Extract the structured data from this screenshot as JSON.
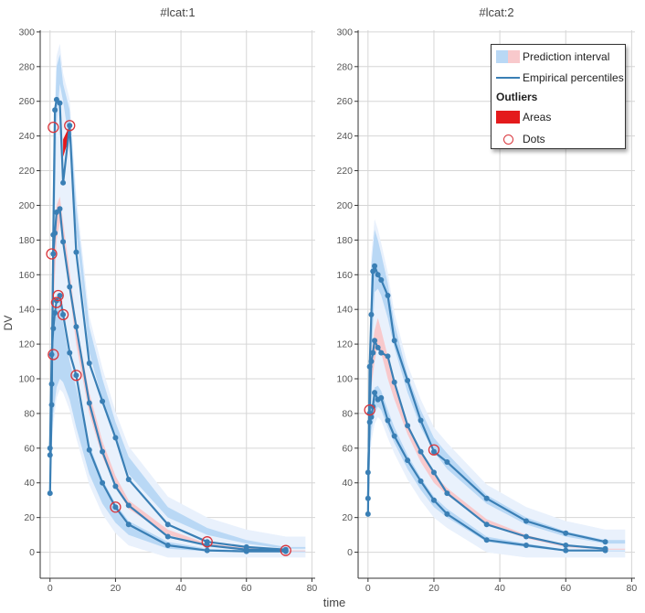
{
  "colors": {
    "band_blue": "#b9d8f5",
    "band_blue_light": "#e9f1fc",
    "band_pink": "#f8c9cc",
    "line": "#3a7fb5",
    "outlier_area": "#e41a1c",
    "outlier_dot": "#d9353b",
    "grid": "#d6d6d6",
    "axis_text": "#555555"
  },
  "chart_data": [
    {
      "type": "line",
      "title": "#lcat:1",
      "xlabel": "time",
      "ylabel": "DV",
      "xlim": [
        -3,
        81
      ],
      "ylim": [
        -15,
        301
      ],
      "xticks": [
        0,
        20,
        40,
        60,
        80
      ],
      "yticks": [
        0,
        20,
        40,
        60,
        80,
        100,
        120,
        140,
        160,
        180,
        200,
        220,
        240,
        260,
        280,
        300
      ],
      "series": [
        {
          "name": "P90",
          "x": [
            0,
            0.5,
            1,
            1.5,
            2,
            3,
            4,
            6,
            8,
            12,
            16,
            20,
            24,
            36,
            48,
            60,
            72
          ],
          "y": [
            34,
            85,
            183,
            255,
            261,
            259,
            213,
            246,
            173,
            109,
            87,
            66,
            42,
            16,
            6,
            3,
            1.5
          ]
        },
        {
          "name": "P50",
          "x": [
            0,
            0.5,
            1,
            1.5,
            2,
            3,
            4,
            6,
            8,
            12,
            16,
            20,
            24,
            36,
            48,
            60,
            72
          ],
          "y": [
            56,
            97,
            172,
            184,
            196,
            198,
            179,
            153,
            130,
            86,
            58,
            38,
            27,
            9,
            4,
            1.5,
            1
          ]
        },
        {
          "name": "P10",
          "x": [
            0,
            0.5,
            1,
            1.5,
            2,
            3,
            4,
            6,
            8,
            12,
            16,
            20,
            24,
            36,
            48,
            60,
            72
          ],
          "y": [
            60,
            114,
            129,
            138,
            145,
            148,
            137,
            115,
            102,
            59,
            40,
            26,
            16,
            4,
            1,
            0.5,
            0.5
          ]
        }
      ],
      "intervals": {
        "x": [
          0,
          1,
          2,
          3,
          4,
          6,
          8,
          12,
          16,
          20,
          24,
          36,
          48,
          60,
          72,
          78
        ],
        "p90_lo": [
          30,
          150,
          248,
          270,
          260,
          235,
          185,
          115,
          88,
          65,
          45,
          20,
          10,
          5,
          2,
          2
        ],
        "p90_hi": [
          40,
          220,
          280,
          287,
          270,
          255,
          200,
          130,
          100,
          75,
          55,
          26,
          14,
          7,
          3,
          3
        ],
        "p50_lo": [
          45,
          140,
          180,
          190,
          178,
          150,
          120,
          80,
          55,
          38,
          25,
          10,
          4,
          1.5,
          0.5,
          0.5
        ],
        "p50_hi": [
          60,
          165,
          200,
          205,
          190,
          162,
          132,
          92,
          64,
          44,
          30,
          13,
          5,
          2.5,
          1,
          1
        ],
        "p10_lo": [
          50,
          80,
          95,
          100,
          98,
          88,
          72,
          45,
          28,
          17,
          10,
          2,
          0.5,
          0.2,
          0,
          0
        ],
        "p10_hi": [
          60,
          125,
          140,
          145,
          132,
          110,
          95,
          62,
          42,
          28,
          18,
          6,
          2,
          1,
          0.5,
          0.5
        ]
      },
      "outlier_areas": [
        {
          "x": [
            4,
            6,
            8
          ],
          "lo": [
            228,
            240,
            176
          ],
          "hi": [
            238,
            246,
            182
          ]
        }
      ],
      "outlier_dots": [
        {
          "x": 1,
          "y": 245
        },
        {
          "x": 6,
          "y": 246
        },
        {
          "x": 0.5,
          "y": 172
        },
        {
          "x": 2.5,
          "y": 148
        },
        {
          "x": 2,
          "y": 144
        },
        {
          "x": 4,
          "y": 137
        },
        {
          "x": 1,
          "y": 114
        },
        {
          "x": 8,
          "y": 102
        },
        {
          "x": 20,
          "y": 26
        },
        {
          "x": 48,
          "y": 6
        },
        {
          "x": 72,
          "y": 1
        }
      ]
    },
    {
      "type": "line",
      "title": "#lcat:2",
      "xlabel": "time",
      "ylabel": "",
      "xlim": [
        -3,
        81
      ],
      "ylim": [
        -15,
        301
      ],
      "xticks": [
        0,
        20,
        40,
        60,
        80
      ],
      "yticks": [
        0,
        20,
        40,
        60,
        80,
        100,
        120,
        140,
        160,
        180,
        200,
        220,
        240,
        260,
        280,
        300
      ],
      "series": [
        {
          "name": "P90",
          "x": [
            0,
            0.5,
            1,
            1.5,
            2,
            3,
            4,
            6,
            8,
            12,
            16,
            20,
            24,
            36,
            48,
            60,
            72
          ],
          "y": [
            22,
            107,
            137,
            162,
            165,
            160,
            157,
            148,
            122,
            99,
            76,
            58,
            52,
            31,
            18,
            11,
            6
          ]
        },
        {
          "name": "P50",
          "x": [
            0,
            0.5,
            1,
            1.5,
            2,
            3,
            4,
            6,
            8,
            12,
            16,
            20,
            24,
            36,
            48,
            60,
            72
          ],
          "y": [
            31,
            80,
            110,
            115,
            122,
            118,
            115,
            113,
            98,
            73,
            58,
            46,
            34,
            16,
            9,
            4,
            2
          ]
        },
        {
          "name": "P10",
          "x": [
            0,
            0.5,
            1,
            1.5,
            2,
            3,
            4,
            6,
            8,
            12,
            16,
            20,
            24,
            36,
            48,
            60,
            72
          ],
          "y": [
            46,
            75,
            78,
            84,
            92,
            88,
            89,
            76,
            67,
            53,
            41,
            30,
            22,
            7,
            4,
            1,
            1
          ]
        }
      ],
      "intervals": {
        "x": [
          0,
          1,
          2,
          3,
          4,
          6,
          8,
          12,
          16,
          20,
          24,
          36,
          48,
          60,
          72,
          78
        ],
        "p90_lo": [
          20,
          110,
          150,
          152,
          148,
          135,
          118,
          92,
          72,
          58,
          48,
          28,
          16,
          9,
          5,
          5
        ],
        "p90_hi": [
          40,
          165,
          186,
          180,
          172,
          155,
          132,
          102,
          82,
          66,
          57,
          33,
          20,
          12,
          7,
          7
        ],
        "p50_lo": [
          30,
          95,
          110,
          120,
          115,
          100,
          88,
          68,
          52,
          40,
          33,
          16,
          8,
          3,
          1.5,
          1.5
        ],
        "p50_hi": [
          45,
          115,
          128,
          135,
          128,
          113,
          99,
          75,
          58,
          45,
          37,
          19,
          10,
          4,
          2,
          2
        ],
        "p10_lo": [
          40,
          70,
          80,
          84,
          82,
          72,
          63,
          48,
          36,
          26,
          20,
          6,
          3,
          0.5,
          0.5,
          0.5
        ],
        "p10_hi": [
          55,
          85,
          95,
          96,
          93,
          82,
          72,
          56,
          43,
          32,
          25,
          9,
          5,
          1.5,
          1,
          1
        ]
      },
      "outlier_areas": [],
      "outlier_dots": [
        {
          "x": 0.5,
          "y": 82
        },
        {
          "x": 20,
          "y": 59
        }
      ]
    }
  ],
  "legend": {
    "prediction_interval": "Prediction interval",
    "empirical_percentiles": "Empirical percentiles",
    "outliers_heading": "Outliers",
    "areas": "Areas",
    "dots": "Dots"
  }
}
